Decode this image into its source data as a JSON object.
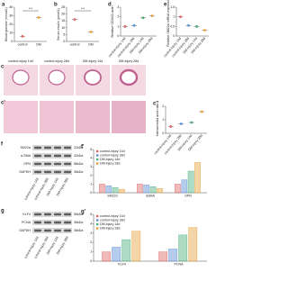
{
  "chart_data": [
    {
      "panel": "a",
      "type": "dot",
      "ylabel": "Blood glucose (mmol/L)",
      "categories": [
        "control",
        "DM"
      ],
      "values": [
        6,
        28
      ],
      "colors": [
        "#e06666",
        "#e6a23c"
      ],
      "ylim": [
        0,
        40
      ],
      "yticks": [
        0,
        10,
        20,
        30,
        40
      ],
      "annotation": "***"
    },
    {
      "panel": "b",
      "type": "dot",
      "ylabel": "Serum insulin (pmol/L)",
      "categories": [
        "control",
        "DM"
      ],
      "values": [
        16,
        7
      ],
      "colors": [
        "#e06666",
        "#e6a23c"
      ],
      "ylim": [
        0,
        25
      ],
      "yticks": [
        0,
        5,
        10,
        15,
        20,
        25
      ],
      "annotation": "***"
    },
    {
      "panel": "d",
      "type": "dot",
      "ylabel": "Relative CD63/β-actin",
      "categories": [
        "control-injury 14d",
        "control-injury 28d",
        "DM-injury 14d",
        "DM-injury 28d"
      ],
      "values": [
        1,
        1.1,
        1.9,
        2.1
      ],
      "colors": [
        "#e06666",
        "#5b8fd6",
        "#4caf7a",
        "#e6a23c"
      ],
      "ylim": [
        0,
        3
      ],
      "yticks": [
        0,
        1,
        2,
        3
      ]
    },
    {
      "panel": "e",
      "type": "dot",
      "ylabel": "Relative SM22α mRNA expression",
      "categories": [
        "control-injury 14d",
        "control-injury 28d",
        "DM-injury 14d",
        "DM-injury 28d"
      ],
      "values": [
        1,
        0.55,
        0.5,
        0.3
      ],
      "colors": [
        "#e06666",
        "#5b8fd6",
        "#4caf7a",
        "#e6a23c"
      ],
      "ylim": [
        0,
        1.5
      ],
      "yticks": [
        0,
        0.5,
        1,
        1.5
      ]
    },
    {
      "panel": "c''",
      "type": "dot",
      "ylabel": "Intima/media area ratio",
      "categories": [
        "control-injury 14d",
        "control-injury 28d",
        "DM-injury 14d",
        "DM-injury 28d"
      ],
      "values": [
        0.5,
        0.7,
        0.8,
        1.6
      ],
      "colors": [
        "#e06666",
        "#5b8fd6",
        "#4caf7a",
        "#e6a23c"
      ],
      "ylim": [
        0,
        2
      ],
      "yticks": [
        0,
        1,
        2
      ]
    },
    {
      "panel": "f'",
      "type": "bar",
      "categories": [
        "SM22α",
        "αSMA",
        "OPN"
      ],
      "series": [
        {
          "name": "control-injury 14d",
          "color": "#e06666",
          "values": [
            1,
            1,
            1
          ]
        },
        {
          "name": "control-injury 28d",
          "color": "#5b8fd6",
          "values": [
            0.8,
            0.9,
            1.5
          ]
        },
        {
          "name": "DM-injury 14d",
          "color": "#4caf7a",
          "values": [
            0.6,
            0.7,
            2.5
          ]
        },
        {
          "name": "DM-injury 28d",
          "color": "#e6a23c",
          "values": [
            0.4,
            0.5,
            3.5
          ]
        }
      ],
      "ylim": [
        0,
        5
      ],
      "yticks": [
        0,
        1,
        2,
        3,
        4,
        5
      ]
    },
    {
      "panel": "g'",
      "type": "bar",
      "categories": [
        "KLF4",
        "PCNA"
      ],
      "series": [
        {
          "name": "control-injury 14d",
          "color": "#e06666",
          "values": [
            1,
            1
          ]
        },
        {
          "name": "control-injury 28d",
          "color": "#5b8fd6",
          "values": [
            1.5,
            1.3
          ]
        },
        {
          "name": "DM-injury 14d",
          "color": "#4caf7a",
          "values": [
            2.3,
            2.8
          ]
        },
        {
          "name": "DM-injury 28d",
          "color": "#e6a23c",
          "values": [
            3.2,
            3.6
          ]
        }
      ],
      "ylim": [
        0,
        5
      ],
      "yticks": [
        0,
        1,
        2,
        3,
        4,
        5
      ]
    }
  ],
  "images": {
    "panel": "c",
    "panel_prime": "c'",
    "columns": [
      "control-injury 14d",
      "control-injury 28d",
      "DM-injury 14d",
      "DM-injury 28d"
    ]
  },
  "blot_f": {
    "panel": "f",
    "columns": [
      "control-injury 14d",
      "control-injury 28d",
      "DM-injury 14d",
      "DM-injury 28d"
    ],
    "rows": [
      {
        "label": "SM22α",
        "size": "22kDa"
      },
      {
        "label": "α-SMA",
        "size": "42kDa"
      },
      {
        "label": "OPN",
        "size": "66kDa"
      },
      {
        "label": "GAPDH",
        "size": "36kDa"
      }
    ]
  },
  "blot_g": {
    "panel": "g",
    "columns": [
      "control-injury 14d",
      "control-injury 28d",
      "DM-injury 14d",
      "DM-injury 28d"
    ],
    "rows": [
      {
        "label": "KLF4",
        "size": "55kDa"
      },
      {
        "label": "PCNA",
        "size": "36kDa"
      },
      {
        "label": "GAPDH",
        "size": "36kDa"
      }
    ]
  }
}
